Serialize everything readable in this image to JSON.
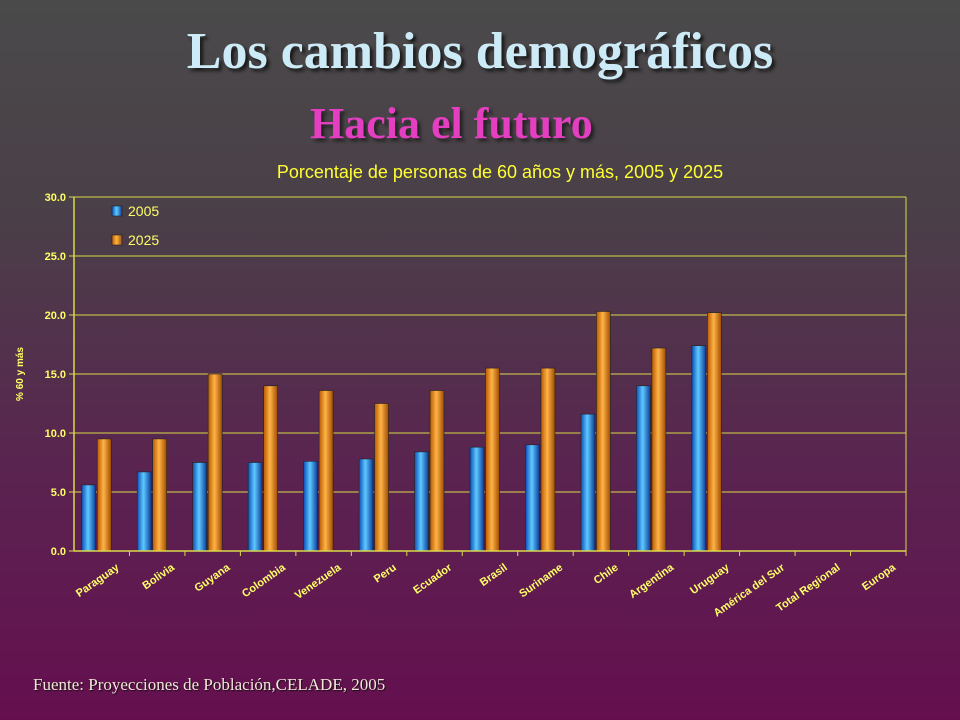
{
  "slide": {
    "title": "Los cambios demográficos",
    "subtitle": "Hacia el futuro",
    "footnote": "Fuente: Proyecciones de Población,CELADE, 2005"
  },
  "colors": {
    "series_2005": "#2f9bff",
    "series_2025": "#ff8c00",
    "axis_text": "#ffff66",
    "gridline": "#d9d94a"
  },
  "chart_data": {
    "type": "bar",
    "title": "Porcentaje de personas de 60 años y más, 2005 y 2025",
    "xlabel": "",
    "ylabel": "% 60 y más",
    "ylim": [
      0,
      30
    ],
    "yticks": [
      "0.0",
      "5.0",
      "10.0",
      "15.0",
      "20.0",
      "25.0",
      "30.0"
    ],
    "grid": true,
    "legend_position": "top-left",
    "categories": [
      "Paraguay",
      "Bolivia",
      "Guyana",
      "Colombia",
      "Venezuela",
      "Peru",
      "Ecuador",
      "Brasil",
      "Suriname",
      "Chile",
      "Argentina",
      "Uruguay",
      "América del Sur",
      "Total Regional",
      "Europa"
    ],
    "series": [
      {
        "name": "2005",
        "values": [
          5.6,
          6.7,
          7.5,
          7.5,
          7.6,
          7.8,
          8.4,
          8.8,
          9.0,
          11.6,
          14.0,
          17.4,
          null,
          null,
          null
        ]
      },
      {
        "name": "2025",
        "values": [
          9.5,
          9.5,
          15.0,
          14.0,
          13.6,
          12.5,
          13.6,
          15.5,
          15.5,
          20.3,
          17.2,
          20.2,
          null,
          null,
          null
        ]
      }
    ]
  }
}
